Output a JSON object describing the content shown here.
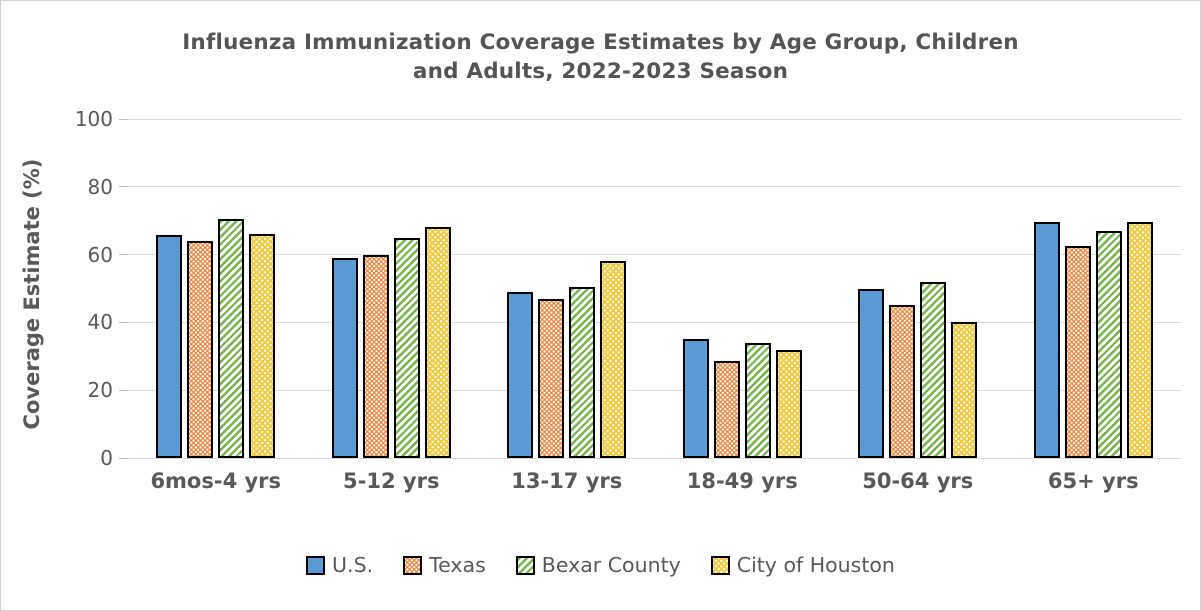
{
  "window": {
    "background": "#ffffff",
    "border_color": "#d2d2d2"
  },
  "chart_data": {
    "type": "bar",
    "title": "Influenza Immunization Coverage Estimates by Age Group, Children and Adults, 2022-2023 Season",
    "title_lines": [
      "Influenza Immunization Coverage Estimates by Age Group, Children",
      "and Adults, 2022-2023 Season"
    ],
    "ylabel": "Coverage Estimate (%)",
    "xlabel": "",
    "ylim": [
      0,
      100
    ],
    "yticks": [
      0,
      20,
      40,
      60,
      80,
      100
    ],
    "grid": true,
    "legend_position": "bottom",
    "categories": [
      "6mos-4 yrs",
      "5-12 yrs",
      "13-17 yrs",
      "18-49 yrs",
      "50-64 yrs",
      "65+ yrs"
    ],
    "series": [
      {
        "name": "U.S.",
        "color": "#5B9BD5",
        "pattern": "solid",
        "values": [
          65.7,
          59,
          49,
          35,
          50,
          69.5
        ]
      },
      {
        "name": "Texas",
        "color": "#ED7D31",
        "pattern": "dotted",
        "values": [
          64,
          60,
          47,
          28.5,
          45,
          62.5
        ]
      },
      {
        "name": "Bexar County",
        "color": "#77B34C",
        "pattern": "diagonal-hatch",
        "values": [
          70.5,
          65,
          50.5,
          34,
          52,
          67
        ]
      },
      {
        "name": "City of Houston",
        "color": "#F0C93F",
        "pattern": "dotted-sparse",
        "values": [
          66,
          68,
          58,
          32,
          40,
          69.5
        ]
      }
    ],
    "colors": {
      "gridline": "#d9d9d9",
      "axis_text": "#595959",
      "title_text": "#545454",
      "bar_border": "#000000"
    }
  }
}
